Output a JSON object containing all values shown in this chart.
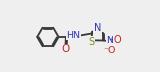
{
  "bg_color": "#efefef",
  "bond_color": "#383838",
  "atom_colors": {
    "N": "#3333bb",
    "O": "#cc2222",
    "S": "#888820",
    "C": "#383838"
  },
  "bond_width": 1.3,
  "figsize": [
    1.6,
    0.72
  ],
  "dpi": 100
}
